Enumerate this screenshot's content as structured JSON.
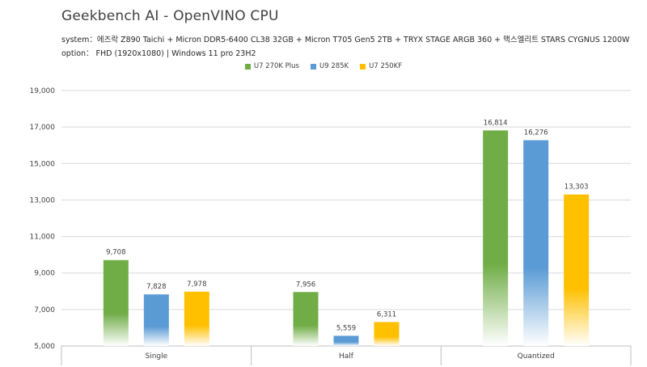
{
  "header": {
    "title": "Geekbench AI - OpenVINO CPU",
    "system": "system：에즈락 Z890 Taichi + Micron DDR5-6400 CL38 32GB + Micron T705 Gen5 2TB + TRYX STAGE ARGB 360 + 맥스엘리트 STARS CYGNUS 1200W",
    "option": "option： FHD (1920x1080) | Windows 11 pro 23H2"
  },
  "colors": {
    "series": [
      "#70ad47",
      "#5b9bd5",
      "#ffc000"
    ],
    "gridline": "#d9d9d9",
    "axis": "#bfbfbf"
  },
  "chart_data": {
    "type": "bar",
    "title": "Geekbench AI - OpenVINO CPU",
    "categories": [
      "Single",
      "Half",
      "Quantized"
    ],
    "series": [
      {
        "name": "U7 270K Plus",
        "values": [
          9708,
          7956,
          16814
        ],
        "labels": [
          "9,708",
          "7,956",
          "16,814"
        ]
      },
      {
        "name": "U9 285K",
        "values": [
          7828,
          5559,
          16276
        ],
        "labels": [
          "7,828",
          "5,559",
          "16,276"
        ]
      },
      {
        "name": "U7 250KF",
        "values": [
          7978,
          6311,
          13303
        ],
        "labels": [
          "7,978",
          "6,311",
          "13,303"
        ]
      }
    ],
    "ylim": [
      5000,
      19000
    ],
    "yticks": [
      5000,
      7000,
      9000,
      11000,
      13000,
      15000,
      17000,
      19000
    ],
    "ytick_labels": [
      "5,000",
      "7,000",
      "9,000",
      "11,000",
      "13,000",
      "15,000",
      "17,000",
      "19,000"
    ],
    "grid": true,
    "legend_position": "top-center",
    "bar_style": "vertical gradient fading to white at base"
  }
}
